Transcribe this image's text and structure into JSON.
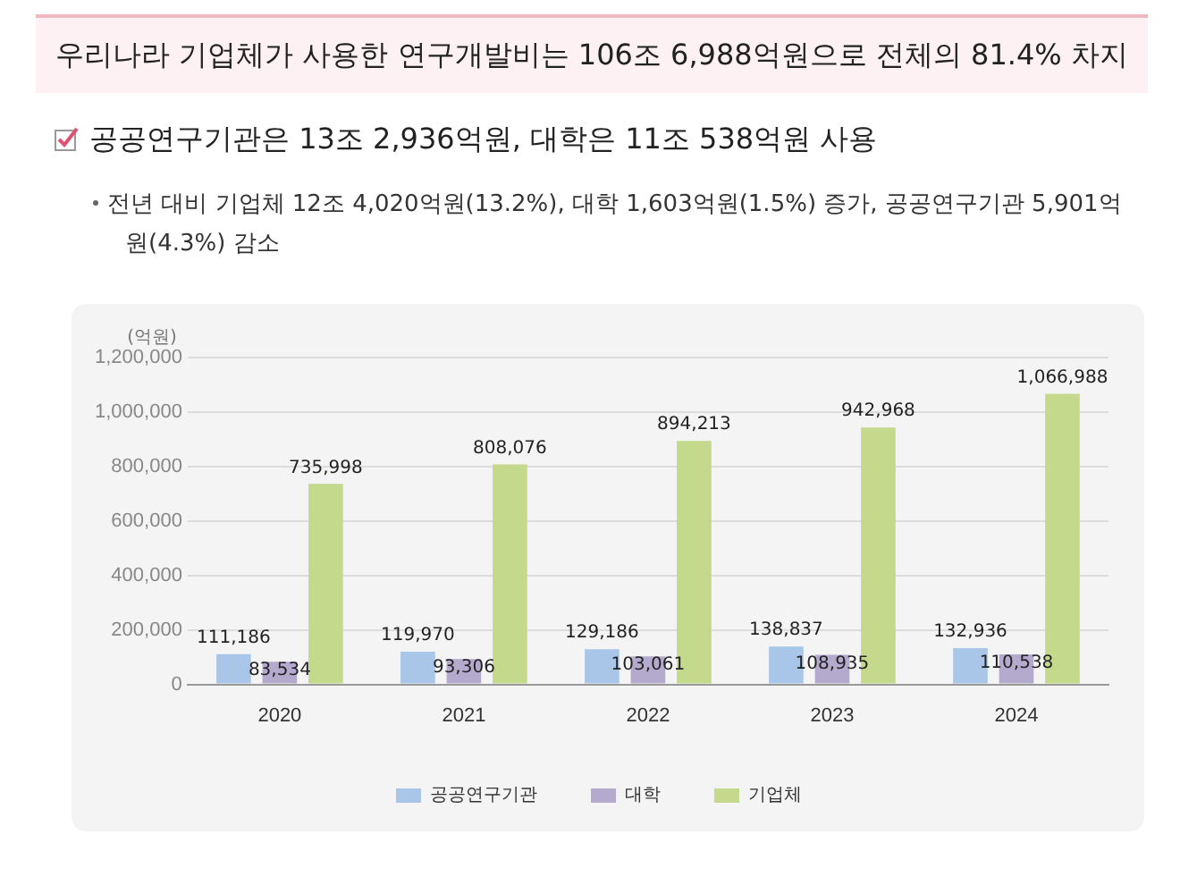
{
  "chart_data": {
    "type": "bar",
    "title": "우리나라 기업체가 사용한 연구개발비는 106조 6,988억원으로 전체의 81.4% 차지",
    "subtitle": "공공연구기관은 13조 2,936억원, 대학은 11조 538억원 사용",
    "annotations": [
      "전년 대비 기업체 12조 4,020억원(13.2%), 대학 1,603억원(1.5%) 증가, 공공연구기관 5,901억원(4.3%) 감소"
    ],
    "ylabel": "(억원)",
    "categories": [
      "2020",
      "2021",
      "2022",
      "2023",
      "2024"
    ],
    "series": [
      {
        "name": "공공연구기관",
        "color": "#a9c5e8",
        "values": [
          111186,
          119970,
          129186,
          138837,
          132936
        ],
        "value_labels": [
          "111,186",
          "119,970",
          "129,186",
          "138,837",
          "132,936"
        ]
      },
      {
        "name": "대학",
        "color": "#b4aacd",
        "values": [
          83534,
          93306,
          103061,
          108935,
          110538
        ],
        "value_labels": [
          "83,534",
          "93,306",
          "103,061",
          "108,935",
          "110,538"
        ]
      },
      {
        "name": "기업체",
        "color": "#c4d98b",
        "values": [
          735998,
          808076,
          894213,
          942968,
          1066988
        ],
        "value_labels": [
          "735,998",
          "808,076",
          "894,213",
          "942,968",
          "1,066,988"
        ]
      }
    ],
    "ylim": [
      0,
      1200000
    ],
    "yticks": [
      0,
      {
        "value": 200000,
        "label": "200,000"
      },
      {
        "value": 400000,
        "label": "400,000"
      },
      {
        "value": 600000,
        "label": "600,000"
      },
      {
        "value": 800000,
        "label": "800,000"
      },
      {
        "value": 1000000,
        "label": "1,000,000"
      },
      {
        "value": 1200000,
        "label": "1,200,000"
      }
    ],
    "grid": "y",
    "legend": "bottom"
  }
}
